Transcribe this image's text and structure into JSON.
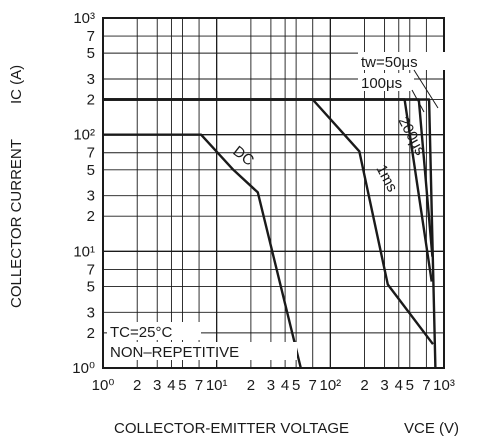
{
  "chart_data": {
    "type": "line",
    "xlabel": "COLLECTOR-EMITTER VOLTAGE",
    "xsymbol": "VCE (V)",
    "ylabel": "COLLECTOR CURRENT",
    "ysymbol": "IC (A)",
    "xscale": "log",
    "yscale": "log",
    "xlim": [
      1,
      1000
    ],
    "ylim": [
      1,
      1000
    ],
    "grid": true,
    "x_tick_labels": [
      "10⁰",
      "2",
      "3",
      "4",
      "5",
      "7",
      "10¹",
      "2",
      "3",
      "4",
      "5",
      "7",
      "10²",
      "2",
      "3",
      "4",
      "5",
      "7",
      "10³"
    ],
    "y_tick_labels": [
      "10⁰",
      "2",
      "3",
      "5",
      "7",
      "10¹",
      "2",
      "3",
      "5",
      "7",
      "10²",
      "2",
      "3",
      "5",
      "7",
      "10³"
    ],
    "series": [
      {
        "name": "DC",
        "x": [
          1,
          7.3,
          14,
          23,
          55
        ],
        "y": [
          100,
          100,
          50,
          32,
          1
        ]
      },
      {
        "name": "1ms",
        "x": [
          1,
          70,
          180,
          320,
          800
        ],
        "y": [
          200,
          200,
          72,
          5.2,
          1.6
        ]
      },
      {
        "name": "200μs",
        "x": [
          1,
          450,
          780
        ],
        "y": [
          200,
          200,
          5.5
        ]
      },
      {
        "name": "100μs",
        "x": [
          1,
          600,
          790
        ],
        "y": [
          200,
          200,
          9
        ]
      },
      {
        "name": "tw=50μs",
        "x": [
          1,
          740,
          840
        ],
        "y": [
          200,
          200,
          1
        ]
      }
    ],
    "annotations": {
      "tc": "TC=25°C",
      "mode": "NON–REPETITIVE",
      "tw50": "tw=50μs",
      "tw100": "100μs",
      "tw200": "200μs",
      "ms1": "1ms",
      "dc": "DC"
    },
    "colors": {
      "line": "#1a1a1a",
      "background": "#ffffff"
    }
  }
}
